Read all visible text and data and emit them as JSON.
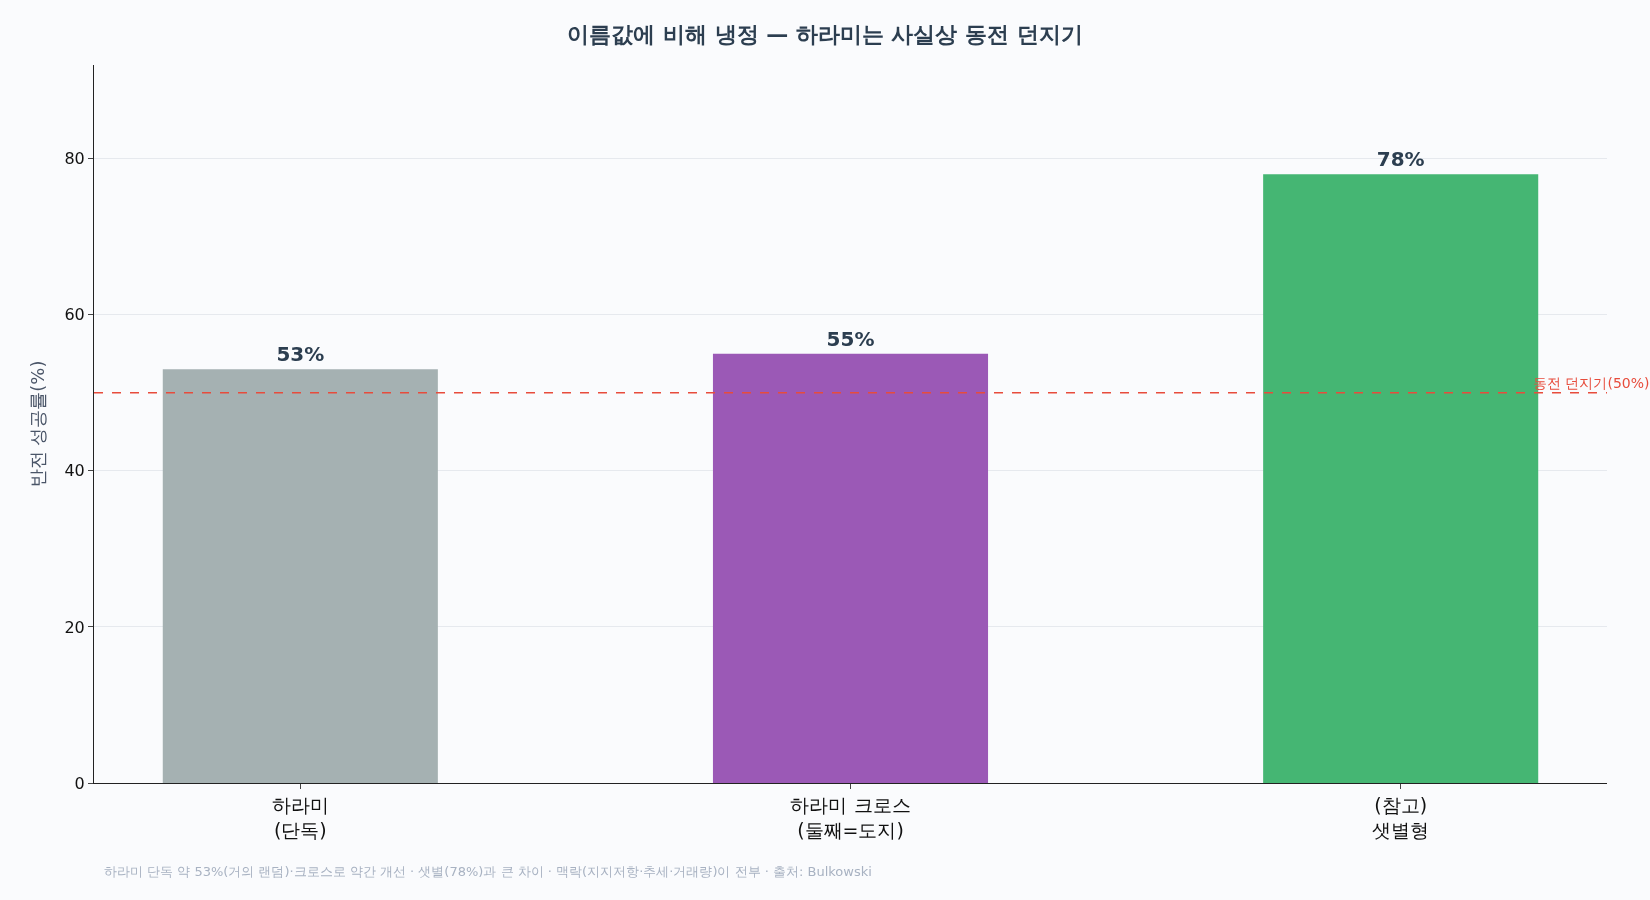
{
  "chart_data": {
    "type": "bar",
    "title": "이름값에 비해 냉정 — 하라미는 사실상 동전 던지기",
    "ylabel": "반전 성공률(%)",
    "categories": [
      "하라미\n(단독)",
      "하라미 크로스\n(둘째=도지)",
      "(참고)\n샛별형"
    ],
    "values": [
      53,
      55,
      78
    ],
    "colors": [
      "#a5b1b2",
      "#9b59b6",
      "#45b673"
    ],
    "value_labels": [
      "53%",
      "55%",
      "78%"
    ],
    "ylim": [
      0,
      92
    ],
    "yticks": [
      0,
      20,
      40,
      60,
      80
    ],
    "grid": "y",
    "ref_lines": [
      {
        "axis": "y",
        "value": 50,
        "label": "동전 던지기(50%)",
        "color": "#e74c3c",
        "line_style": "dashed"
      }
    ],
    "annotations": [
      "하라미 단독 약 53%(거의 랜덤)·크로스로 약간 개선 · 샛별(78%)과 큰 차이 · 맥락(지지저항·추세·거래량)이 전부 · 출처: Bulkowski"
    ]
  }
}
